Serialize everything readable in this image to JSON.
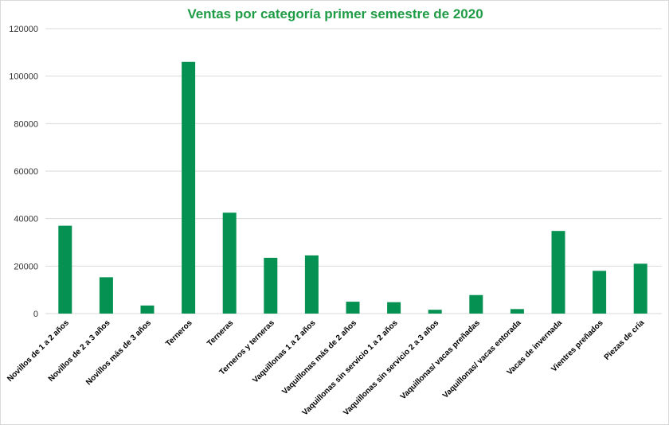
{
  "chart_data": {
    "type": "bar",
    "title": "Ventas por categoría primer semestre de 2020",
    "xlabel": "",
    "ylabel": "",
    "ylim": [
      0,
      120000
    ],
    "yticks": [
      0,
      20000,
      40000,
      60000,
      80000,
      100000,
      120000
    ],
    "ytick_labels": [
      "0",
      "20000",
      "40000",
      "60000",
      "80000",
      "100000",
      "120000"
    ],
    "grid": true,
    "legend": "none",
    "categories": [
      "Novillos de 1 a 2 años",
      "Novillos de 2 a 3 años",
      "Novillos más de 3 años",
      "Terneros",
      "Terneras",
      "Terneros y terneras",
      "Vaquillonas 1 a 2 años",
      "Vaquillonas más de 2 años",
      "Vaquillonas sin servicio 1 a 2 años",
      "Vaquillonas sin servicio 2 a 3 años",
      "Vaquillonas/ vacas preñadas",
      "Vaquillonas/ vacas entorada",
      "Vacas de invernada",
      "Vientres preñados",
      "Piezas de cría"
    ],
    "values": [
      37000,
      15300,
      3400,
      106000,
      42500,
      23500,
      24500,
      5000,
      4800,
      1600,
      7800,
      1900,
      34800,
      18000,
      21000
    ],
    "colors": {
      "bar": "#059152",
      "title": "#1f9c45"
    }
  }
}
